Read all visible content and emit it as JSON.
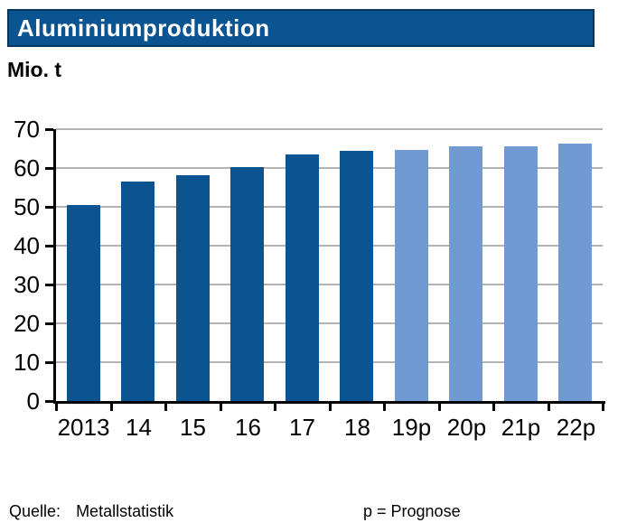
{
  "header": {
    "title": "Aluminiumproduktion",
    "unit_label": "Mio. t"
  },
  "footer": {
    "source_label": "Quelle:",
    "source_value": "Metallstatistik",
    "note": "p = Prognose"
  },
  "colors": {
    "header_bg": "#0a5492",
    "header_border": "#06375f",
    "bar_actual": "#0a5492",
    "bar_forecast": "#6f9bd2",
    "gridline": "#b3b3b3",
    "axis": "#000000",
    "title_text": "#ffffff"
  },
  "chart_data": {
    "type": "bar",
    "title": "Aluminiumproduktion",
    "ylabel": "Mio. t",
    "xlabel": "",
    "categories": [
      "2013",
      "14",
      "15",
      "16",
      "17",
      "18",
      "19p",
      "20p",
      "21p",
      "22p"
    ],
    "series": [
      {
        "name": "Aluminiumproduktion",
        "values": [
          50.5,
          56.4,
          58.2,
          60.3,
          63.4,
          64.4,
          64.7,
          65.6,
          65.6,
          66.2
        ]
      }
    ],
    "bar_types": [
      "actual",
      "actual",
      "actual",
      "actual",
      "actual",
      "actual",
      "forecast",
      "forecast",
      "forecast",
      "forecast"
    ],
    "ylim": [
      0,
      70
    ],
    "ytick_step": 10,
    "grid": true,
    "legend": false,
    "note": "p = Prognose (forecast bars shown in light blue)"
  }
}
